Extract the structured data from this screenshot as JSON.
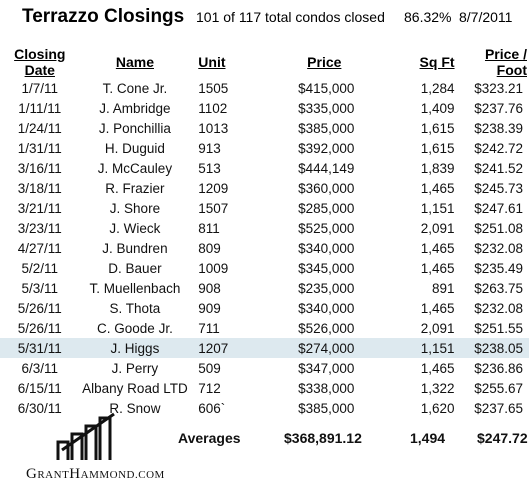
{
  "header": {
    "title": "Terrazzo Closings",
    "closed_summary": "101 of 117 total condos closed",
    "percent": "86.32%",
    "date": "8/7/2011"
  },
  "table": {
    "columns": [
      "Closing Date",
      "Name",
      "Unit",
      "Price",
      "Sq Ft",
      "Price / Foot"
    ],
    "highlight_color": "#dde9ef",
    "rows": [
      {
        "date": "1/7/11",
        "name": "T. Cone Jr.",
        "unit": "1505",
        "price": "$415,000",
        "sqft": "1,284",
        "ppf": "$323.21"
      },
      {
        "date": "1/11/11",
        "name": "J. Ambridge",
        "unit": "1102",
        "price": "$335,000",
        "sqft": "1,409",
        "ppf": "$237.76"
      },
      {
        "date": "1/24/11",
        "name": "J. Ponchillia",
        "unit": "1013",
        "price": "$385,000",
        "sqft": "1,615",
        "ppf": "$238.39"
      },
      {
        "date": "1/31/11",
        "name": "H. Duguid",
        "unit": "913",
        "price": "$392,000",
        "sqft": "1,615",
        "ppf": "$242.72"
      },
      {
        "date": "3/16/11",
        "name": "J. McCauley",
        "unit": "513",
        "price": "$444,149",
        "sqft": "1,839",
        "ppf": "$241.52"
      },
      {
        "date": "3/18/11",
        "name": "R. Frazier",
        "unit": "1209",
        "price": "$360,000",
        "sqft": "1,465",
        "ppf": "$245.73"
      },
      {
        "date": "3/21/11",
        "name": "J. Shore",
        "unit": "1507",
        "price": "$285,000",
        "sqft": "1,151",
        "ppf": "$247.61"
      },
      {
        "date": "3/23/11",
        "name": "J. Wieck",
        "unit": "811",
        "price": "$525,000",
        "sqft": "2,091",
        "ppf": "$251.08"
      },
      {
        "date": "4/27/11",
        "name": "J. Bundren",
        "unit": "809",
        "price": "$340,000",
        "sqft": "1,465",
        "ppf": "$232.08"
      },
      {
        "date": "5/2/11",
        "name": "D. Bauer",
        "unit": "1009",
        "price": "$345,000",
        "sqft": "1,465",
        "ppf": "$235.49"
      },
      {
        "date": "5/3/11",
        "name": "T. Muellenbach",
        "unit": "908",
        "price": "$235,000",
        "sqft": "891",
        "ppf": "$263.75"
      },
      {
        "date": "5/26/11",
        "name": "S. Thota",
        "unit": "909",
        "price": "$340,000",
        "sqft": "1,465",
        "ppf": "$232.08"
      },
      {
        "date": "5/26/11",
        "name": "C. Goode Jr.",
        "unit": "711",
        "price": "$526,000",
        "sqft": "2,091",
        "ppf": "$251.55"
      },
      {
        "date": "5/31/11",
        "name": "J. Higgs",
        "unit": "1207",
        "price": "$274,000",
        "sqft": "1,151",
        "ppf": "$238.05",
        "highlight": true
      },
      {
        "date": "6/3/11",
        "name": "J. Perry",
        "unit": "509",
        "price": "$347,000",
        "sqft": "1,465",
        "ppf": "$236.86"
      },
      {
        "date": "6/15/11",
        "name": "Albany Road LTD",
        "unit": "712",
        "price": "$338,000",
        "sqft": "1,322",
        "ppf": "$255.67"
      },
      {
        "date": "6/30/11",
        "name": "R. Snow",
        "unit": "606`",
        "price": "$385,000",
        "sqft": "1,620",
        "ppf": "$237.65"
      }
    ]
  },
  "averages": {
    "label": "Averages",
    "price": "$368,891.12",
    "sqft": "1,494",
    "ppf": "$247.72"
  },
  "brand": {
    "text_big_g": "G",
    "text_rant": "RANT",
    "text_big_h": "H",
    "text_ammond": "AMMOND",
    "text_com": ".COM",
    "logo_icon": "building-bars-icon"
  }
}
